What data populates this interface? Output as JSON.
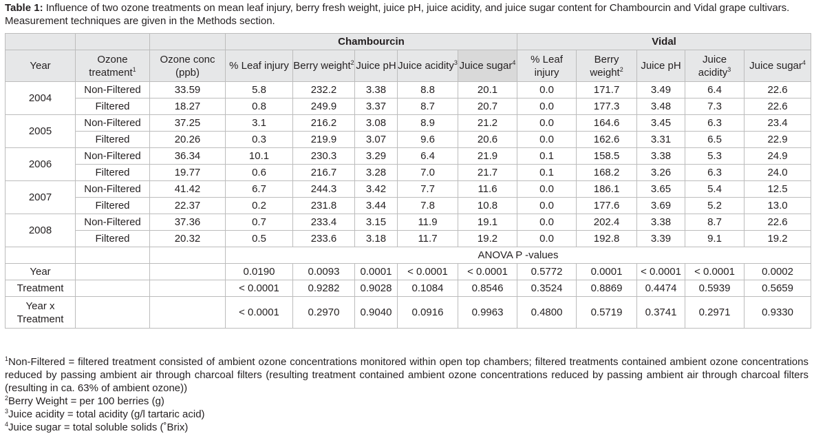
{
  "caption": {
    "label": "Table 1:",
    "text": "Influence of two ozone treatments on mean leaf injury, berry fresh weight, juice pH, juice acidity, and juice sugar content for Chambourcin and Vidal grape cultivars. Measurement techniques are given in the Methods section."
  },
  "header": {
    "group_chambourcin": "Chambourcin",
    "group_vidal": "Vidal",
    "year": "Year",
    "ozone_treatment": "Ozone treatment",
    "ozone_treatment_sup": "1",
    "ozone_conc": "Ozone conc (ppb)",
    "leaf_injury": "% Leaf injury",
    "berry_weight": "Berry weight",
    "berry_weight_sup": "2",
    "juice_ph": "Juice pH",
    "juice_acidity": "Juice acidity",
    "juice_acidity_sup": "3",
    "juice_sugar": "Juice sugar",
    "juice_sugar_sup": "4"
  },
  "rows": [
    {
      "year": "2004",
      "treatment": "Non-Filtered",
      "conc": "33.59",
      "c": [
        "5.8",
        "232.2",
        "3.38",
        "8.8",
        "20.1"
      ],
      "v": [
        "0.0",
        "171.7",
        "3.49",
        "6.4",
        "22.6"
      ]
    },
    {
      "year": "2004",
      "treatment": "Filtered",
      "conc": "18.27",
      "c": [
        "0.8",
        "249.9",
        "3.37",
        "8.7",
        "20.7"
      ],
      "v": [
        "0.0",
        "177.3",
        "3.48",
        "7.3",
        "22.6"
      ]
    },
    {
      "year": "2005",
      "treatment": "Non-Filtered",
      "conc": "37.25",
      "c": [
        "3.1",
        "216.2",
        "3.08",
        "8.9",
        "21.2"
      ],
      "v": [
        "0.0",
        "164.6",
        "3.45",
        "6.3",
        "23.4"
      ]
    },
    {
      "year": "2005",
      "treatment": "Filtered",
      "conc": "20.26",
      "c": [
        "0.3",
        "219.9",
        "3.07",
        "9.6",
        "20.6"
      ],
      "v": [
        "0.0",
        "162.6",
        "3.31",
        "6.5",
        "22.9"
      ]
    },
    {
      "year": "2006",
      "treatment": "Non-Filtered",
      "conc": "36.34",
      "c": [
        "10.1",
        "230.3",
        "3.29",
        "6.4",
        "21.9"
      ],
      "v": [
        "0.1",
        "158.5",
        "3.38",
        "5.3",
        "24.9"
      ]
    },
    {
      "year": "2006",
      "treatment": "Filtered",
      "conc": "19.77",
      "c": [
        "0.6",
        "216.7",
        "3.28",
        "7.0",
        "21.7"
      ],
      "v": [
        "0.1",
        "168.2",
        "3.26",
        "6.3",
        "24.0"
      ]
    },
    {
      "year": "2007",
      "treatment": "Non-Filtered",
      "conc": "41.42",
      "c": [
        "6.7",
        "244.3",
        "3.42",
        "7.7",
        "11.6"
      ],
      "v": [
        "0.0",
        "186.1",
        "3.65",
        "5.4",
        "12.5"
      ]
    },
    {
      "year": "2007",
      "treatment": "Filtered",
      "conc": "22.37",
      "c": [
        "0.2",
        "231.8",
        "3.44",
        "7.8",
        "10.8"
      ],
      "v": [
        "0.0",
        "177.6",
        "3.69",
        "5.2",
        "13.0"
      ]
    },
    {
      "year": "2008",
      "treatment": "Non-Filtered",
      "conc": "37.36",
      "c": [
        "0.7",
        "233.4",
        "3.15",
        "11.9",
        "19.1"
      ],
      "v": [
        "0.0",
        "202.4",
        "3.38",
        "8.7",
        "22.6"
      ]
    },
    {
      "year": "2008",
      "treatment": "Filtered",
      "conc": "20.32",
      "c": [
        "0.5",
        "233.6",
        "3.18",
        "11.7",
        "19.2"
      ],
      "v": [
        "0.0",
        "192.8",
        "3.39",
        "9.1",
        "19.2"
      ]
    }
  ],
  "anova": {
    "title": "ANOVA P -values",
    "rows": [
      {
        "label": "Year",
        "values": [
          "0.0190",
          "0.0093",
          "0.0001",
          "< 0.0001",
          "< 0.0001",
          "0.5772",
          "0.0001",
          "< 0.0001",
          "< 0.0001",
          "0.0002"
        ]
      },
      {
        "label": "Treatment",
        "values": [
          "< 0.0001",
          "0.9282",
          "0.9028",
          "0.1084",
          "0.8546",
          "0.3524",
          "0.8869",
          "0.4474",
          "0.5939",
          "0.5659"
        ]
      },
      {
        "label": "Year x Treatment",
        "values": [
          "< 0.0001",
          "0.2970",
          "0.9040",
          "0.0916",
          "0.9963",
          "0.4800",
          "0.5719",
          "0.3741",
          "0.2971",
          "0.9330"
        ]
      }
    ]
  },
  "footnotes": [
    {
      "sup": "1",
      "text": "Non-Filtered = filtered treatment consisted of ambient ozone concentrations monitored within open top chambers; filtered treatments contained ambient ozone concentrations reduced by passing ambient air through charcoal filters (resulting treatment contained ambient ozone concentrations reduced by passing ambient air through charcoal filters (resulting in ca. 63% of ambient ozone))"
    },
    {
      "sup": "2",
      "text": "Berry Weight = per 100 berries (g)"
    },
    {
      "sup": "3",
      "text": "Juice acidity = total acidity (g/l tartaric acid)"
    },
    {
      "sup": "4",
      "text": "Juice sugar = total soluble solids (˚Brix)"
    }
  ]
}
